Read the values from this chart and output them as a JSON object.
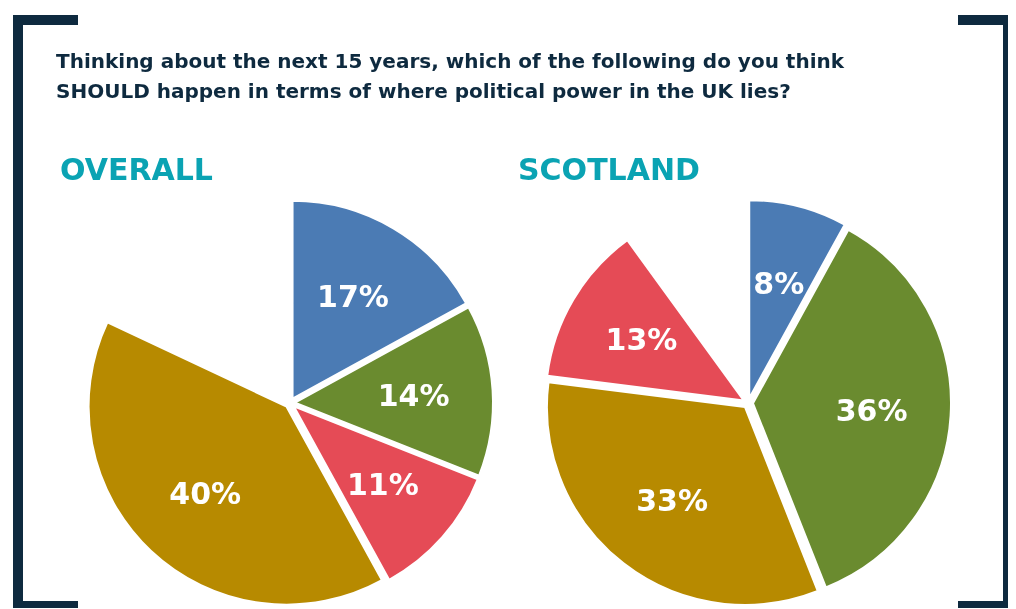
{
  "chart_data": [
    {
      "type": "pie",
      "title": "OVERALL",
      "annotations": [
        "Thinking about the next 15 years, which of the following do you think SHOULD happen in terms of where political power in the UK lies?"
      ],
      "categories": [
        null,
        null,
        null,
        null
      ],
      "values": [
        17,
        14,
        11,
        40
      ],
      "colors": [
        "#4b7bb4",
        "#6a8b2f",
        "#e54b56",
        "#b78a00"
      ],
      "value_labels": [
        "17%",
        "14%",
        "11%",
        "40%"
      ]
    },
    {
      "type": "pie",
      "title": "SCOTLAND",
      "categories": [
        null,
        null,
        null,
        null
      ],
      "values": [
        8,
        36,
        33,
        13
      ],
      "colors": [
        "#4b7bb4",
        "#6a8b2f",
        "#b78a00",
        "#e54b56"
      ],
      "value_labels": [
        "8%",
        "36%",
        "33%",
        "13%"
      ]
    }
  ]
}
